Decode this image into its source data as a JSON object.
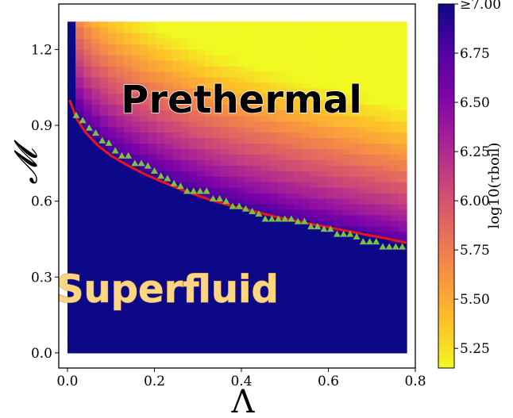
{
  "chart_data": {
    "type": "heatmap",
    "title": "",
    "xlabel": "Λ",
    "ylabel": "𝓜",
    "xlim": [
      -0.02,
      0.8
    ],
    "ylim": [
      -0.06,
      1.38
    ],
    "x_ticks": [
      "0.0",
      "0.2",
      "0.4",
      "0.6",
      "0.8"
    ],
    "y_ticks": [
      "0.0",
      "0.3",
      "0.6",
      "0.9",
      "1.2"
    ],
    "heatmap_extent": {
      "x": [
        0.0,
        0.78
      ],
      "y": [
        0.0,
        1.31
      ]
    },
    "colorbar": {
      "colormap": "plasma",
      "label": "log10(τboil)",
      "range": [
        5.15,
        7.0
      ],
      "ticks": [
        "5.25",
        "5.50",
        "5.75",
        "6.00",
        "6.25",
        "6.50",
        "6.75",
        "≥7.00"
      ],
      "tick_values": [
        5.25,
        5.5,
        5.75,
        6.0,
        6.25,
        6.5,
        6.75,
        7.0
      ]
    },
    "annotations": [
      {
        "text": "Prethermal",
        "x": 0.4,
        "y": 1.0
      },
      {
        "text": "Superfluid",
        "x": 0.23,
        "y": 0.25
      }
    ],
    "series": [
      {
        "type": "line",
        "color": "#e8151b",
        "x": [
          0.005,
          0.02,
          0.04,
          0.07,
          0.1,
          0.14,
          0.18,
          0.22,
          0.27,
          0.32,
          0.38,
          0.44,
          0.5,
          0.56,
          0.62,
          0.68,
          0.74,
          0.78
        ],
        "y": [
          1.0,
          0.93,
          0.875,
          0.82,
          0.78,
          0.74,
          0.705,
          0.675,
          0.64,
          0.61,
          0.58,
          0.555,
          0.53,
          0.51,
          0.49,
          0.47,
          0.45,
          0.435
        ]
      },
      {
        "type": "scatter",
        "marker": "triangle",
        "color": "#7ac143",
        "x": [
          0.02,
          0.035,
          0.05,
          0.065,
          0.08,
          0.095,
          0.11,
          0.125,
          0.14,
          0.155,
          0.17,
          0.185,
          0.2,
          0.215,
          0.23,
          0.245,
          0.26,
          0.275,
          0.29,
          0.305,
          0.32,
          0.335,
          0.35,
          0.365,
          0.38,
          0.395,
          0.41,
          0.425,
          0.44,
          0.455,
          0.47,
          0.485,
          0.5,
          0.515,
          0.53,
          0.545,
          0.56,
          0.575,
          0.59,
          0.605,
          0.62,
          0.635,
          0.65,
          0.665,
          0.68,
          0.695,
          0.71,
          0.725,
          0.74,
          0.755,
          0.77
        ],
        "y": [
          0.94,
          0.92,
          0.89,
          0.87,
          0.84,
          0.83,
          0.8,
          0.78,
          0.78,
          0.75,
          0.75,
          0.74,
          0.72,
          0.7,
          0.69,
          0.67,
          0.66,
          0.64,
          0.64,
          0.64,
          0.64,
          0.61,
          0.61,
          0.6,
          0.58,
          0.58,
          0.57,
          0.56,
          0.55,
          0.53,
          0.53,
          0.53,
          0.53,
          0.53,
          0.52,
          0.52,
          0.5,
          0.5,
          0.49,
          0.49,
          0.47,
          0.47,
          0.47,
          0.46,
          0.44,
          0.44,
          0.44,
          0.42,
          0.42,
          0.42,
          0.42
        ]
      }
    ]
  }
}
